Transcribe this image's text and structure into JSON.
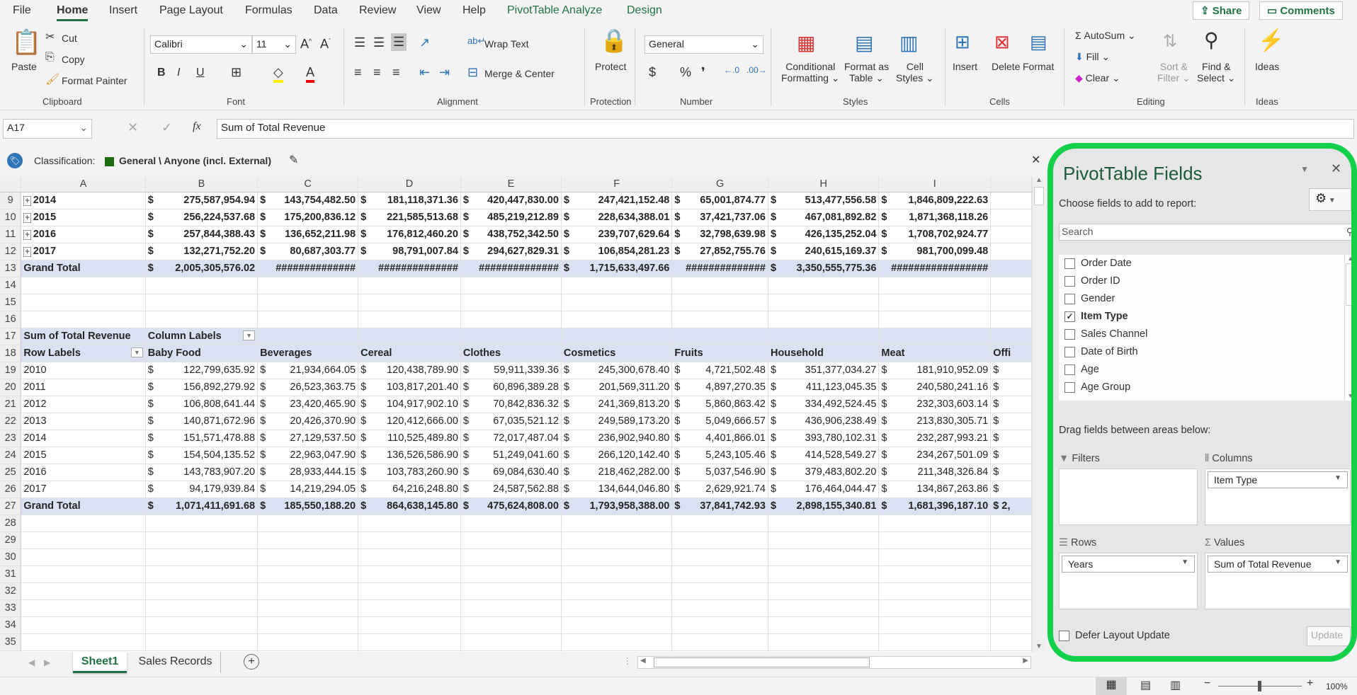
{
  "menu": {
    "items": [
      "File",
      "Home",
      "Insert",
      "Page Layout",
      "Formulas",
      "Data",
      "Review",
      "View",
      "Help",
      "PivotTable Analyze",
      "Design"
    ],
    "share": "Share",
    "comments": "Comments"
  },
  "ribbon": {
    "clipboard": {
      "paste": "Paste",
      "cut": "Cut",
      "copy": "Copy",
      "format_painter": "Format Painter",
      "label": "Clipboard"
    },
    "font": {
      "name": "Calibri",
      "size": "11",
      "label": "Font",
      "bold": "B",
      "italic": "I",
      "underline": "U"
    },
    "alignment": {
      "wrap": "Wrap Text",
      "merge": "Merge & Center",
      "label": "Alignment"
    },
    "protection": {
      "protect": "Protect",
      "label": "Protection"
    },
    "number": {
      "format": "General",
      "label": "Number"
    },
    "styles": {
      "conditional": [
        "Conditional",
        "Formatting"
      ],
      "table": [
        "Format as",
        "Table"
      ],
      "cell": [
        "Cell",
        "Styles"
      ],
      "label": "Styles"
    },
    "cells": {
      "insert": "Insert",
      "delete": "Delete",
      "format": "Format",
      "label": "Cells"
    },
    "editing": {
      "autosum": "AutoSum",
      "fill": "Fill",
      "clear": "Clear",
      "sort": [
        "Sort &",
        "Filter"
      ],
      "find": [
        "Find &",
        "Select"
      ],
      "label": "Editing"
    },
    "ideas": {
      "ideas": "Ideas",
      "label": "Ideas"
    }
  },
  "formula_bar": {
    "name_box": "A17",
    "fx": "fx",
    "content": "Sum of Total Revenue"
  },
  "classification": {
    "label": "Classification:",
    "value": "General \\ Anyone (incl. External)"
  },
  "grid": {
    "columns": [
      "A",
      "B",
      "C",
      "D",
      "E",
      "F",
      "G",
      "H",
      "I",
      ""
    ],
    "rows": [
      {
        "n": "9",
        "label": "2014",
        "expand": true,
        "vals": [
          "275,587,954.94",
          "143,754,482.50",
          "181,118,371.36",
          "420,447,830.00",
          "247,421,152.48",
          "65,001,874.77",
          "513,477,556.58",
          "1,846,809,222.63"
        ]
      },
      {
        "n": "10",
        "label": "2015",
        "expand": true,
        "vals": [
          "256,224,537.68",
          "175,200,836.12",
          "221,585,513.68",
          "485,219,212.89",
          "228,634,388.01",
          "37,421,737.06",
          "467,081,892.82",
          "1,871,368,118.26"
        ]
      },
      {
        "n": "11",
        "label": "2016",
        "expand": true,
        "vals": [
          "257,844,388.43",
          "136,652,211.98",
          "176,812,460.20",
          "438,752,342.50",
          "239,707,629.64",
          "32,798,639.98",
          "426,135,252.04",
          "1,708,702,924.77"
        ]
      },
      {
        "n": "12",
        "label": "2017",
        "expand": true,
        "vals": [
          "132,271,752.20",
          "80,687,303.77",
          "98,791,007.84",
          "294,627,829.31",
          "106,854,281.23",
          "27,852,755.76",
          "240,615,169.37",
          "981,700,099.48"
        ]
      },
      {
        "n": "13",
        "label": "Grand Total",
        "total": true,
        "vals": [
          "2,005,305,576.02",
          "##############",
          "##############",
          "##############",
          "1,715,633,497.66",
          "##############",
          "3,350,555,775.36",
          "#################"
        ]
      }
    ],
    "pivot": {
      "corner": "Sum of Total Revenue",
      "col_labels": "Column Labels",
      "row_labels": "Row Labels",
      "headers": [
        "Baby Food",
        "Beverages",
        "Cereal",
        "Clothes",
        "Cosmetics",
        "Fruits",
        "Household",
        "Meat",
        "Offi"
      ],
      "rows": [
        {
          "n": "19",
          "label": "2010",
          "vals": [
            "122,799,635.92",
            "21,934,664.05",
            "120,438,789.90",
            "59,911,339.36",
            "245,300,678.40",
            "4,721,502.48",
            "351,377,034.27",
            "181,910,952.09"
          ]
        },
        {
          "n": "20",
          "label": "2011",
          "vals": [
            "156,892,279.92",
            "26,523,363.75",
            "103,817,201.40",
            "60,896,389.28",
            "201,569,311.20",
            "4,897,270.35",
            "411,123,045.35",
            "240,580,241.16"
          ]
        },
        {
          "n": "21",
          "label": "2012",
          "vals": [
            "106,808,641.44",
            "23,420,465.90",
            "104,917,902.10",
            "70,842,836.32",
            "241,369,813.20",
            "5,860,863.42",
            "334,492,524.45",
            "232,303,603.14"
          ]
        },
        {
          "n": "22",
          "label": "2013",
          "vals": [
            "140,871,672.96",
            "20,426,370.90",
            "120,412,666.00",
            "67,035,521.12",
            "249,589,173.20",
            "5,049,666.57",
            "436,906,238.49",
            "213,830,305.71"
          ]
        },
        {
          "n": "23",
          "label": "2014",
          "vals": [
            "151,571,478.88",
            "27,129,537.50",
            "110,525,489.80",
            "72,017,487.04",
            "236,902,940.80",
            "4,401,866.01",
            "393,780,102.31",
            "232,287,993.21"
          ]
        },
        {
          "n": "24",
          "label": "2015",
          "vals": [
            "154,504,135.52",
            "22,963,047.90",
            "136,526,586.90",
            "51,249,041.60",
            "266,120,142.40",
            "5,243,105.46",
            "414,528,549.27",
            "234,267,501.09"
          ]
        },
        {
          "n": "25",
          "label": "2016",
          "vals": [
            "143,783,907.20",
            "28,933,444.15",
            "103,783,260.90",
            "69,084,630.40",
            "218,462,282.00",
            "5,037,546.90",
            "379,483,802.20",
            "211,348,326.84"
          ]
        },
        {
          "n": "26",
          "label": "2017",
          "vals": [
            "94,179,939.84",
            "14,219,294.05",
            "64,216,248.80",
            "24,587,562.88",
            "134,644,046.80",
            "2,629,921.74",
            "176,464,044.47",
            "134,867,263.86"
          ]
        }
      ],
      "grand_total": {
        "n": "27",
        "label": "Grand Total",
        "vals": [
          "1,071,411,691.68",
          "185,550,188.20",
          "864,638,145.80",
          "475,624,808.00",
          "1,793,958,388.00",
          "37,841,742.93",
          "2,898,155,340.81",
          "1,681,396,187.10"
        ],
        "partial": "2,"
      }
    },
    "currency": "$",
    "empty_rows": [
      "14",
      "15",
      "16",
      "28",
      "29",
      "30",
      "31",
      "32",
      "33",
      "34",
      "35"
    ]
  },
  "sheet_tabs": {
    "tabs": [
      "Sheet1",
      "Sales Records"
    ],
    "active": "Sheet1"
  },
  "status": {
    "zoom": "100%"
  },
  "pivot_panel": {
    "title": "PivotTable Fields",
    "choose": "Choose fields to add to report:",
    "search_placeholder": "Search",
    "fields": [
      {
        "name": "Order Date",
        "checked": false
      },
      {
        "name": "Order ID",
        "checked": false
      },
      {
        "name": "Gender",
        "checked": false
      },
      {
        "name": "Item Type",
        "checked": true
      },
      {
        "name": "Sales Channel",
        "checked": false
      },
      {
        "name": "Date of Birth",
        "checked": false
      },
      {
        "name": "Age",
        "checked": false
      },
      {
        "name": "Age Group",
        "checked": false
      }
    ],
    "drag": "Drag fields between areas below:",
    "filters": "Filters",
    "columns": "Columns",
    "rows": "Rows",
    "values": "Values",
    "columns_field": "Item Type",
    "rows_field": "Years",
    "values_field": "Sum of Total Revenue",
    "defer": "Defer Layout Update",
    "update": "Update"
  },
  "colors": {
    "accent": "#217346",
    "pivot_header": "#d9e1f2",
    "highlight_border": "#12d04a"
  }
}
